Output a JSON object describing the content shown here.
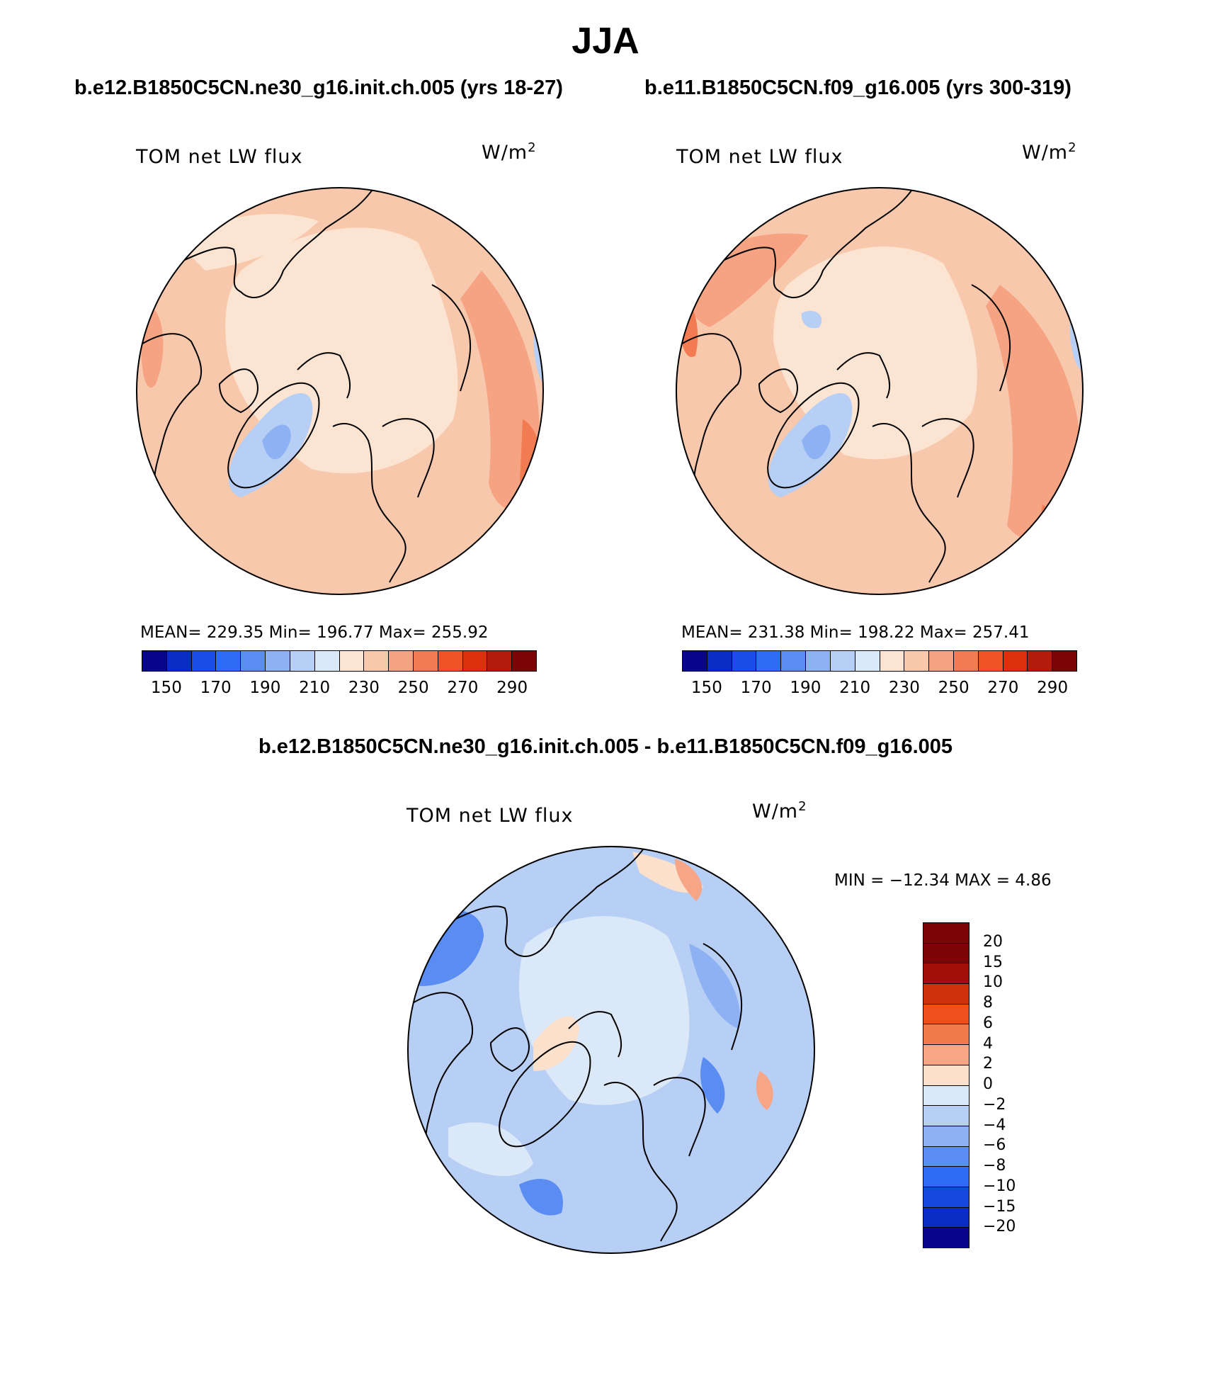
{
  "title": "JJA",
  "panels": [
    {
      "case_title": "b.e12.B1850C5CN.ne30_g16.init.ch.005 (yrs 18-27)",
      "variable": "TOM net LW flux",
      "units": "W/m",
      "units_exp": "2",
      "stats": "MEAN= 229.35   Min= 196.77   Max= 255.92",
      "colorbar": {
        "colors": [
          "#08058a",
          "#0a2bc4",
          "#1a4ee6",
          "#2e6cf5",
          "#5a8cf2",
          "#8db1f3",
          "#b7cff5",
          "#dbe8f8",
          "#fbe4d2",
          "#f8c8ac",
          "#f5a383",
          "#f27b52",
          "#ef5224",
          "#dc2f0c",
          "#b31b0a",
          "#7a0406"
        ],
        "ticks": [
          "150",
          "170",
          "190",
          "210",
          "230",
          "250",
          "270",
          "290"
        ]
      }
    },
    {
      "case_title": "b.e11.B1850C5CN.f09_g16.005 (yrs 300-319)",
      "variable": "TOM net LW flux",
      "units": "W/m",
      "units_exp": "2",
      "stats": "MEAN= 231.38   Min= 198.22   Max= 257.41",
      "colorbar": {
        "colors": [
          "#08058a",
          "#0a2bc4",
          "#1a4ee6",
          "#2e6cf5",
          "#5a8cf2",
          "#8db1f3",
          "#b7cff5",
          "#dbe8f8",
          "#fbe4d2",
          "#f8c8ac",
          "#f5a383",
          "#f27b52",
          "#ef5224",
          "#dc2f0c",
          "#b31b0a",
          "#7a0406"
        ],
        "ticks": [
          "150",
          "170",
          "190",
          "210",
          "230",
          "250",
          "270",
          "290"
        ]
      }
    }
  ],
  "diff": {
    "case_title": "b.e12.B1850C5CN.ne30_g16.init.ch.005 - b.e11.B1850C5CN.f09_g16.005",
    "variable": "TOM net LW flux",
    "units": "W/m",
    "units_exp": "2",
    "minmax": "MIN = −12.34  MAX =    4.86",
    "colorbar": {
      "colors": [
        "#7a0406",
        "#a10f08",
        "#d0300a",
        "#ef4f1a",
        "#f27b4d",
        "#f6a586",
        "#fbe0cc",
        "#dbe8f8",
        "#b7cff5",
        "#8db1f3",
        "#5a8cf2",
        "#2e6cf5",
        "#1648e0",
        "#0a2bc4",
        "#08058a"
      ],
      "ticks": [
        "20",
        "15",
        "10",
        "8",
        "6",
        "4",
        "2",
        "0",
        "−2",
        "−4",
        "−6",
        "−8",
        "−10",
        "−15",
        "−20"
      ]
    }
  },
  "fill_colors": {
    "mean_base": "#f8c8ac",
    "mean_light": "#fbe4d2",
    "mean_warm": "#f5a383",
    "mean_hot": "#f27b52",
    "mean_cool": "#b7cff5",
    "mean_blue": "#8db1f3",
    "diff_base": "#b7cff5",
    "diff_light": "#dbe8f8",
    "diff_mid": "#8db1f3",
    "diff_deep": "#5a8cf2",
    "diff_pos": "#fbe0cc",
    "diff_pos2": "#f6a586"
  }
}
